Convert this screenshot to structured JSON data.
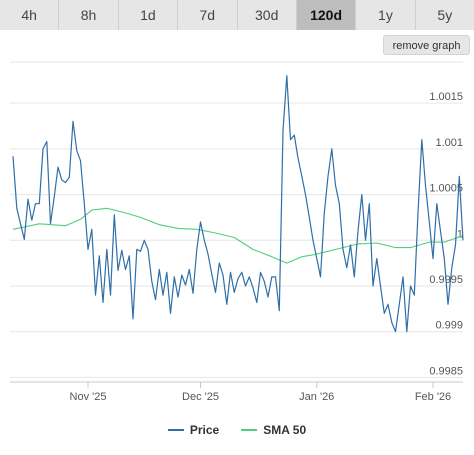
{
  "tabs": [
    {
      "label": "4h",
      "active": false
    },
    {
      "label": "8h",
      "active": false
    },
    {
      "label": "1d",
      "active": false
    },
    {
      "label": "7d",
      "active": false
    },
    {
      "label": "30d",
      "active": false
    },
    {
      "label": "120d",
      "active": true
    },
    {
      "label": "1y",
      "active": false
    },
    {
      "label": "5y",
      "active": false
    }
  ],
  "remove_graph_label": "remove graph",
  "colors": {
    "price": "#2f6fa7",
    "sma": "#4fd07f",
    "grid": "#e6e6e6"
  },
  "legend": [
    {
      "label": "Price",
      "color": "#2f6fa7"
    },
    {
      "label": "SMA 50",
      "color": "#4fd07f"
    }
  ],
  "chart_data": {
    "type": "line",
    "ylim": [
      0.99845,
      1.00195
    ],
    "xlim": [
      "2025-10-12",
      "2026-02-09"
    ],
    "yticks": [
      {
        "value": 0.9985,
        "label": "0.9985"
      },
      {
        "value": 0.999,
        "label": "0.999"
      },
      {
        "value": 0.9995,
        "label": "0.9995"
      },
      {
        "value": 1.0,
        "label": "1"
      },
      {
        "value": 1.0005,
        "label": "1.0005"
      },
      {
        "value": 1.001,
        "label": "1.001"
      },
      {
        "value": 1.0015,
        "label": "1.0015"
      }
    ],
    "xticks": [
      {
        "value": "2025-11-01",
        "label": "Nov '25"
      },
      {
        "value": "2025-12-01",
        "label": "Dec '25"
      },
      {
        "value": "2026-01-01",
        "label": "Jan '26"
      },
      {
        "value": "2026-02-01",
        "label": "Feb '26"
      }
    ],
    "series": [
      {
        "name": "Price",
        "points": [
          [
            "2025-10-12",
            1.00092
          ],
          [
            "2025-10-13",
            1.00035
          ],
          [
            "2025-10-14",
            1.00018
          ],
          [
            "2025-10-15",
            1.00001
          ],
          [
            "2025-10-16",
            1.00045
          ],
          [
            "2025-10-17",
            1.00022
          ],
          [
            "2025-10-18",
            1.0004
          ],
          [
            "2025-10-19",
            1.0004
          ],
          [
            "2025-10-20",
            1.001
          ],
          [
            "2025-10-21",
            1.00108
          ],
          [
            "2025-10-22",
            1.00018
          ],
          [
            "2025-10-23",
            1.00048
          ],
          [
            "2025-10-24",
            1.0008
          ],
          [
            "2025-10-25",
            1.00066
          ],
          [
            "2025-10-26",
            1.00063
          ],
          [
            "2025-10-27",
            1.00069
          ],
          [
            "2025-10-28",
            1.0013
          ],
          [
            "2025-10-29",
            1.00098
          ],
          [
            "2025-10-30",
            1.00087
          ],
          [
            "2025-10-31",
            1.0004
          ],
          [
            "2025-11-01",
            0.9999
          ],
          [
            "2025-11-02",
            1.00012
          ],
          [
            "2025-11-03",
            0.9994
          ],
          [
            "2025-11-04",
            0.99983
          ],
          [
            "2025-11-05",
            0.99932
          ],
          [
            "2025-11-06",
            0.9999
          ],
          [
            "2025-11-07",
            0.9994
          ],
          [
            "2025-11-08",
            1.00028
          ],
          [
            "2025-11-09",
            0.99967
          ],
          [
            "2025-11-10",
            0.99989
          ],
          [
            "2025-11-11",
            0.99968
          ],
          [
            "2025-11-12",
            0.99983
          ],
          [
            "2025-11-13",
            0.99914
          ],
          [
            "2025-11-14",
            0.9999
          ],
          [
            "2025-11-15",
            0.99988
          ],
          [
            "2025-11-16",
            1.0
          ],
          [
            "2025-11-17",
            0.9999
          ],
          [
            "2025-11-18",
            0.99955
          ],
          [
            "2025-11-19",
            0.99935
          ],
          [
            "2025-11-20",
            0.99968
          ],
          [
            "2025-11-21",
            0.9994
          ],
          [
            "2025-11-22",
            0.99965
          ],
          [
            "2025-11-23",
            0.9992
          ],
          [
            "2025-11-24",
            0.9996
          ],
          [
            "2025-11-25",
            0.99938
          ],
          [
            "2025-11-26",
            0.99962
          ],
          [
            "2025-11-27",
            0.99951
          ],
          [
            "2025-11-28",
            0.99968
          ],
          [
            "2025-11-29",
            0.99942
          ],
          [
            "2025-11-30",
            0.9999
          ],
          [
            "2025-12-01",
            1.0002
          ],
          [
            "2025-12-02",
            1.0
          ],
          [
            "2025-12-03",
            0.99985
          ],
          [
            "2025-12-04",
            0.99963
          ],
          [
            "2025-12-05",
            0.99943
          ],
          [
            "2025-12-06",
            0.99975
          ],
          [
            "2025-12-07",
            0.99962
          ],
          [
            "2025-12-08",
            0.9993
          ],
          [
            "2025-12-09",
            0.99965
          ],
          [
            "2025-12-10",
            0.99943
          ],
          [
            "2025-12-11",
            0.99958
          ],
          [
            "2025-12-12",
            0.99965
          ],
          [
            "2025-12-13",
            0.9995
          ],
          [
            "2025-12-14",
            0.9996
          ],
          [
            "2025-12-15",
            0.99948
          ],
          [
            "2025-12-16",
            0.99932
          ],
          [
            "2025-12-17",
            0.99965
          ],
          [
            "2025-12-18",
            0.99955
          ],
          [
            "2025-12-19",
            0.99938
          ],
          [
            "2025-12-20",
            0.9996
          ],
          [
            "2025-12-21",
            0.9996
          ],
          [
            "2025-12-22",
            0.99923
          ],
          [
            "2025-12-23",
            1.0012
          ],
          [
            "2025-12-24",
            1.0018
          ],
          [
            "2025-12-25",
            1.0011
          ],
          [
            "2025-12-26",
            1.00115
          ],
          [
            "2025-12-27",
            1.0009
          ],
          [
            "2025-12-28",
            1.0007
          ],
          [
            "2025-12-29",
            1.0005
          ],
          [
            "2025-12-30",
            1.00025
          ],
          [
            "2025-12-31",
            1.0
          ],
          [
            "2026-01-01",
            0.9998
          ],
          [
            "2026-01-02",
            0.9996
          ],
          [
            "2026-01-03",
            1.0003
          ],
          [
            "2026-01-04",
            1.0007
          ],
          [
            "2026-01-05",
            1.001
          ],
          [
            "2026-01-06",
            1.0006
          ],
          [
            "2026-01-07",
            1.0004
          ],
          [
            "2026-01-08",
            0.9999
          ],
          [
            "2026-01-09",
            0.9997
          ],
          [
            "2026-01-10",
            0.99995
          ],
          [
            "2026-01-11",
            0.9996
          ],
          [
            "2026-01-12",
            1.0001
          ],
          [
            "2026-01-13",
            1.0005
          ],
          [
            "2026-01-14",
            1.0
          ],
          [
            "2026-01-15",
            1.0004
          ],
          [
            "2026-01-16",
            0.9995
          ],
          [
            "2026-01-17",
            0.9998
          ],
          [
            "2026-01-18",
            0.9995
          ],
          [
            "2026-01-19",
            0.9992
          ],
          [
            "2026-01-20",
            0.9993
          ],
          [
            "2026-01-21",
            0.9991
          ],
          [
            "2026-01-22",
            0.999
          ],
          [
            "2026-01-23",
            0.9993
          ],
          [
            "2026-01-24",
            0.9996
          ],
          [
            "2026-01-25",
            0.999
          ],
          [
            "2026-01-26",
            0.9995
          ],
          [
            "2026-01-27",
            0.9994
          ],
          [
            "2026-01-28",
            1.0003
          ],
          [
            "2026-01-29",
            1.0011
          ],
          [
            "2026-01-30",
            1.0006
          ],
          [
            "2026-01-31",
            1.0002
          ],
          [
            "2026-02-01",
            0.9998
          ],
          [
            "2026-02-02",
            1.0004
          ],
          [
            "2026-02-03",
            1.0001
          ],
          [
            "2026-02-04",
            0.9998
          ],
          [
            "2026-02-05",
            0.9993
          ],
          [
            "2026-02-06",
            0.9997
          ],
          [
            "2026-02-07",
            0.99995
          ],
          [
            "2026-02-08",
            1.0007
          ],
          [
            "2026-02-09",
            1.0
          ]
        ]
      },
      {
        "name": "SMA 50",
        "points": [
          [
            "2025-10-12",
            1.00012
          ],
          [
            "2025-10-19",
            1.00018
          ],
          [
            "2025-10-26",
            1.00016
          ],
          [
            "2025-10-30",
            1.00023
          ],
          [
            "2025-11-02",
            1.00033
          ],
          [
            "2025-11-06",
            1.00035
          ],
          [
            "2025-11-11",
            1.0003
          ],
          [
            "2025-11-15",
            1.00025
          ],
          [
            "2025-11-20",
            1.00017
          ],
          [
            "2025-11-25",
            1.00013
          ],
          [
            "2025-11-30",
            1.00012
          ],
          [
            "2025-12-05",
            1.00008
          ],
          [
            "2025-12-10",
            1.00003
          ],
          [
            "2025-12-15",
            0.9999
          ],
          [
            "2025-12-20",
            0.99982
          ],
          [
            "2025-12-24",
            0.99975
          ],
          [
            "2025-12-28",
            0.99982
          ],
          [
            "2025-12-31",
            0.99984
          ],
          [
            "2026-01-03",
            0.99987
          ],
          [
            "2026-01-08",
            0.99992
          ],
          [
            "2026-01-12",
            0.99996
          ],
          [
            "2026-01-17",
            0.99997
          ],
          [
            "2026-01-22",
            0.99992
          ],
          [
            "2026-01-26",
            0.99992
          ],
          [
            "2026-01-31",
            0.99998
          ],
          [
            "2026-02-04",
            0.99998
          ],
          [
            "2026-02-09",
            1.00005
          ]
        ]
      }
    ]
  }
}
